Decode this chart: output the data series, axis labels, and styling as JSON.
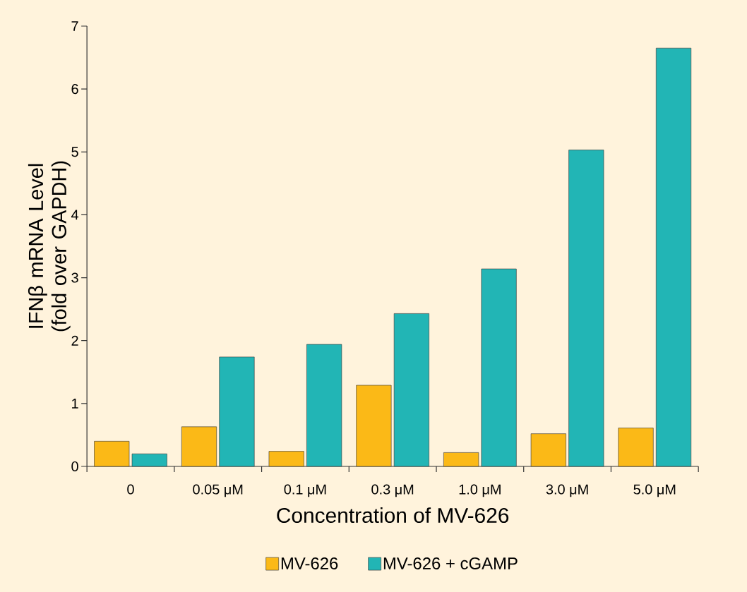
{
  "chart_data": {
    "type": "bar",
    "xlabel": "Concentration of MV-626",
    "ylabel": "IFNβ mRNA Level (fold over GAPDH)",
    "categories": [
      "0",
      "0.05 μM",
      "0.1 μM",
      "0.3 μM",
      "1.0 μM",
      "3.0 μM",
      "5.0 μM"
    ],
    "series": [
      {
        "name": "MV-626",
        "color": "#fbb917",
        "values": [
          0.4,
          0.63,
          0.24,
          1.29,
          0.22,
          0.52,
          0.61
        ]
      },
      {
        "name": "MV-626 + cGAMP",
        "color": "#22b5b5",
        "values": [
          0.2,
          1.74,
          1.94,
          2.43,
          3.14,
          5.03,
          6.65
        ]
      }
    ],
    "ylim": [
      0,
      7
    ],
    "yticks": [
      0,
      1,
      2,
      3,
      4,
      5,
      6,
      7
    ],
    "legend": "bottom"
  }
}
